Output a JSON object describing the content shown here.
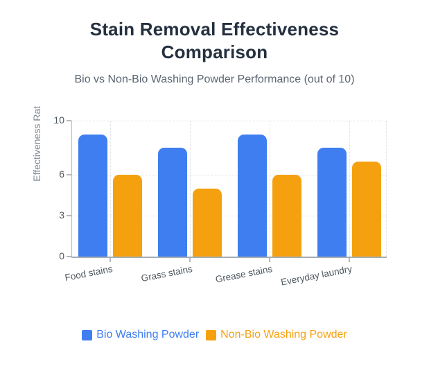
{
  "chart_data": {
    "type": "bar",
    "title": "Stain Removal Effectiveness Comparison",
    "subtitle": "Bio vs Non-Bio Washing Powder Performance (out of 10)",
    "categories": [
      "Food stains",
      "Grass stains",
      "Grease stains",
      "Everyday laundry"
    ],
    "series": [
      {
        "name": "Bio Washing Powder",
        "color": "#3e7ef0",
        "values": [
          9,
          8,
          9,
          8
        ]
      },
      {
        "name": "Non-Bio Washing Powder",
        "color": "#f5a10f",
        "values": [
          6,
          5,
          6,
          7
        ]
      }
    ],
    "xlabel": "",
    "ylabel": "Effectiveness Rat",
    "ylim": [
      0,
      10
    ],
    "yticks": [
      0,
      3,
      6,
      10
    ],
    "grid": true,
    "grid_style": "dashed",
    "legend_position": "bottom"
  },
  "colors": {
    "title": "#24303f",
    "subtitle": "#5b6673",
    "tick_label": "#4f5860",
    "axis_title": "#7e8893",
    "gridline": "#e3e4e6",
    "axis_line": "#a6adb4"
  }
}
